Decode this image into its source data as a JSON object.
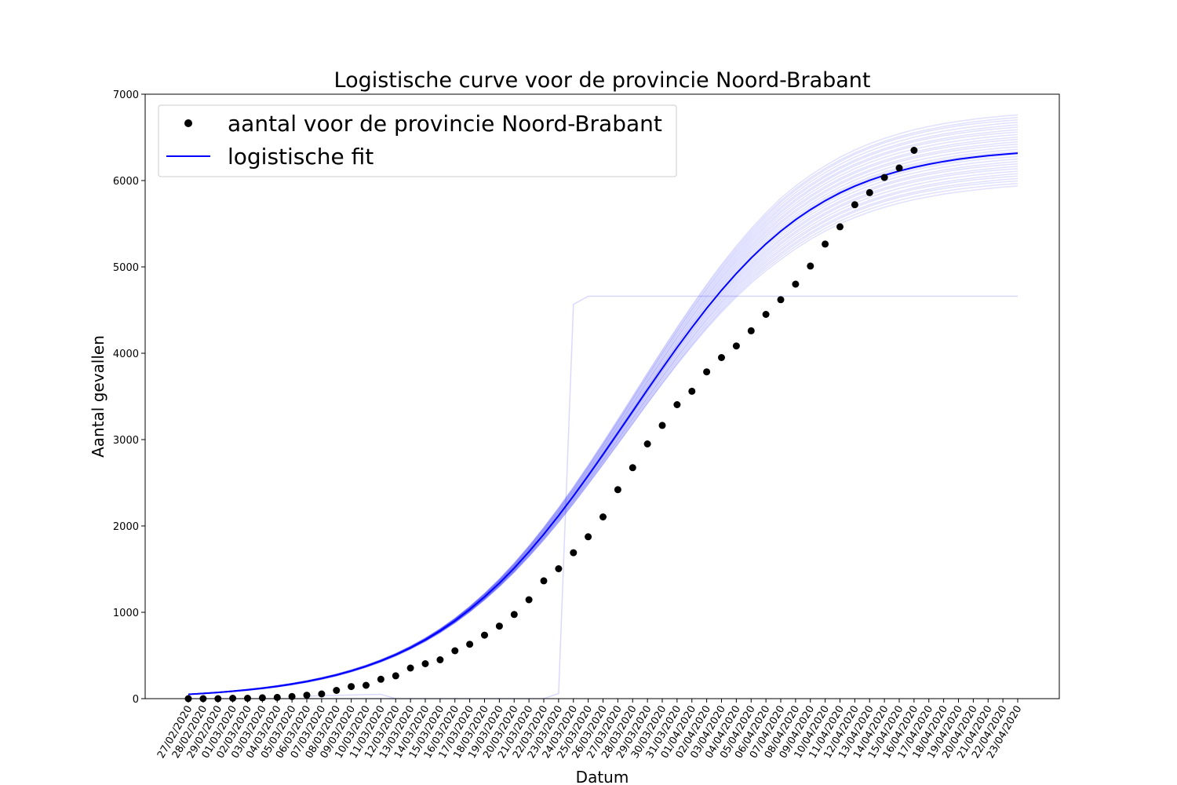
{
  "chart_data": {
    "type": "scatter",
    "title": "Logistische curve voor de provincie Noord-Brabant",
    "xlabel": "Datum",
    "ylabel": "Aantal gevallen",
    "ylim": [
      0,
      7000
    ],
    "yticks": [
      0,
      1000,
      2000,
      3000,
      4000,
      5000,
      6000,
      7000
    ],
    "grid": false,
    "legend_position": "top-left",
    "legend": [
      {
        "label": "aantal voor de provincie Noord-Brabant",
        "marker": "dot",
        "color": "#000000"
      },
      {
        "label": "logistische fit",
        "marker": "line",
        "color": "#0000ff"
      }
    ],
    "x": [
      "27/02/2020",
      "28/02/2020",
      "29/02/2020",
      "01/03/2020",
      "02/03/2020",
      "03/03/2020",
      "04/03/2020",
      "05/03/2020",
      "06/03/2020",
      "07/03/2020",
      "08/03/2020",
      "09/03/2020",
      "10/03/2020",
      "11/03/2020",
      "12/03/2020",
      "13/03/2020",
      "14/03/2020",
      "15/03/2020",
      "16/03/2020",
      "17/03/2020",
      "18/03/2020",
      "19/03/2020",
      "20/03/2020",
      "21/03/2020",
      "22/03/2020",
      "23/03/2020",
      "24/03/2020",
      "25/03/2020",
      "26/03/2020",
      "27/03/2020",
      "28/03/2020",
      "29/03/2020",
      "30/03/2020",
      "31/03/2020",
      "01/04/2020",
      "02/04/2020",
      "03/04/2020",
      "04/04/2020",
      "05/04/2020",
      "06/04/2020",
      "07/04/2020",
      "08/04/2020",
      "09/04/2020",
      "10/04/2020",
      "11/04/2020",
      "12/04/2020",
      "13/04/2020",
      "14/04/2020",
      "15/04/2020",
      "16/04/2020",
      "17/04/2020",
      "18/04/2020",
      "19/04/2020",
      "20/04/2020",
      "21/04/2020",
      "22/04/2020",
      "23/04/2020"
    ],
    "series": [
      {
        "name": "aantal voor de provincie Noord-Brabant",
        "kind": "scatter",
        "color": "#000000",
        "values": [
          0,
          0,
          0,
          5,
          5,
          10,
          15,
          25,
          40,
          55,
          95,
          140,
          155,
          225,
          265,
          355,
          405,
          450,
          555,
          630,
          735,
          840,
          975,
          1145,
          1365,
          1505,
          1690,
          1875,
          2105,
          2420,
          2675,
          2950,
          3165,
          3405,
          3560,
          3785,
          3950,
          4085,
          4260,
          4450,
          4620,
          4800,
          5010,
          5265,
          5465,
          5720,
          5860,
          6035,
          6145,
          6350
        ]
      },
      {
        "name": "logistische fit",
        "kind": "line",
        "color": "#0000ff",
        "values": [
          50,
          60,
          72,
          86,
          102,
          121,
          143,
          169,
          199,
          234,
          274,
          321,
          375,
          437,
          508,
          589,
          681,
          785,
          902,
          1033,
          1178,
          1337,
          1512,
          1701,
          1904,
          2119,
          2346,
          2583,
          2827,
          3076,
          3327,
          3578,
          3825,
          4066,
          4298,
          4520,
          4729,
          4924,
          5103,
          5266,
          5414,
          5546,
          5663,
          5766,
          5857,
          5935,
          6003,
          6061,
          6111,
          6154,
          6190,
          6221,
          6247,
          6269,
          6288,
          6304,
          6317
        ]
      }
    ],
    "bootstrap_fits": {
      "color": "#0000ff",
      "opacity": 0.12,
      "count": 30,
      "outlier_plateau": 4660,
      "outlier_jump_between": [
        "23/03/2020",
        "24/03/2020"
      ]
    }
  }
}
